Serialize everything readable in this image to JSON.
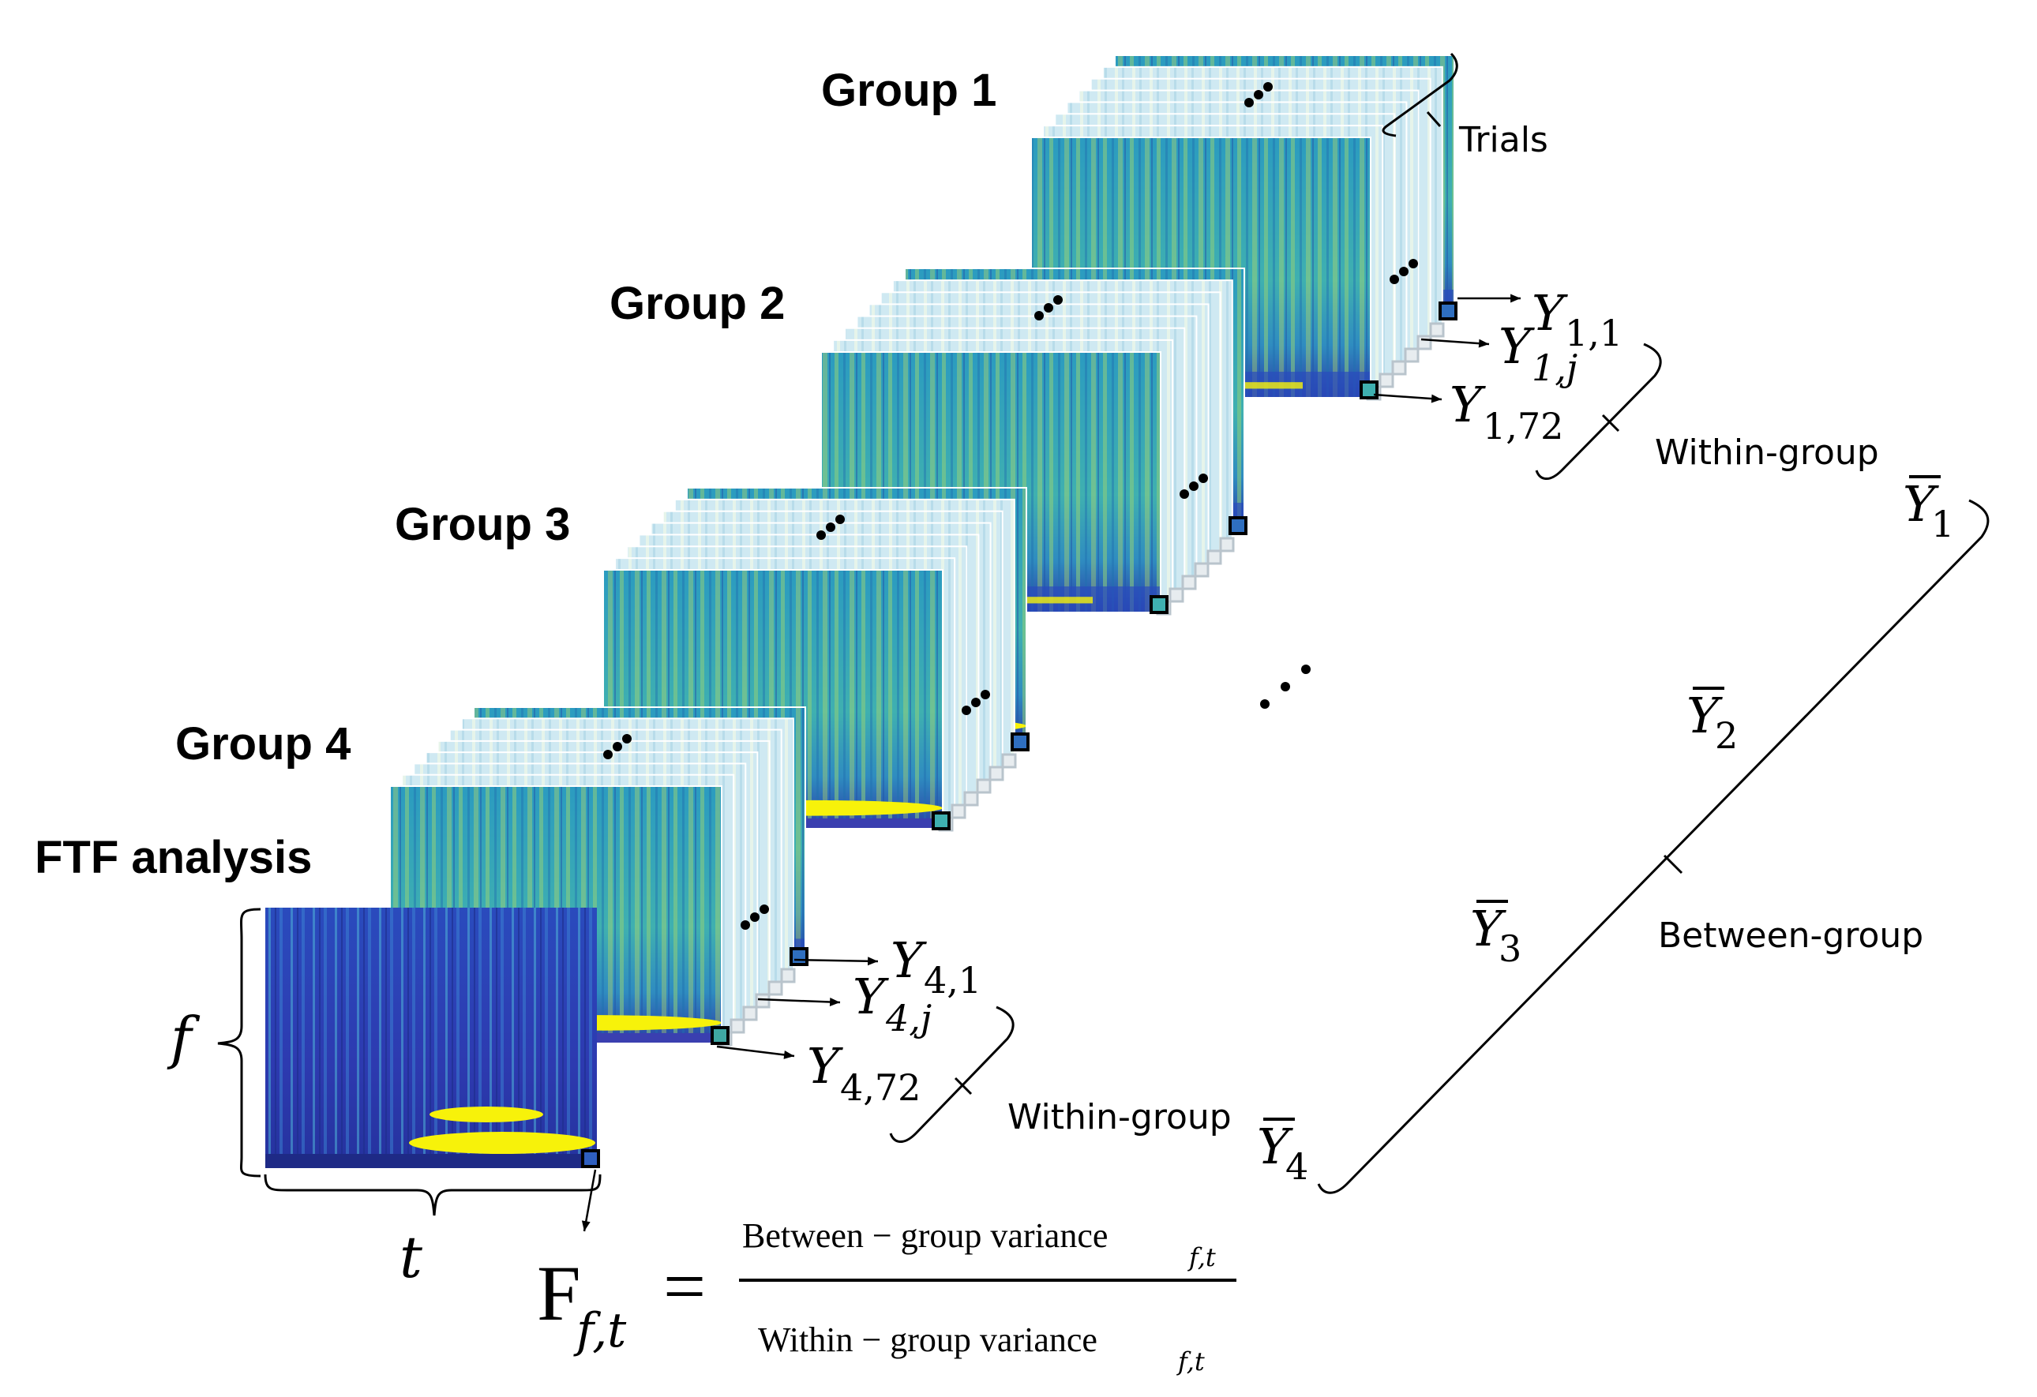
{
  "groups": [
    {
      "label": "Group 1"
    },
    {
      "label": "Group 2"
    },
    {
      "label": "Group 3"
    },
    {
      "label": "Group 4"
    }
  ],
  "ftf_label": "FTF analysis",
  "trials_label": "Trials",
  "within_group_label": "Within-group",
  "between_group_label": "Between-group",
  "axes": {
    "freq": "f",
    "time": "t"
  },
  "samples": {
    "g1": {
      "base": "Y",
      "subs": [
        "1,1",
        "1,j",
        "1,72"
      ]
    },
    "g4": {
      "base": "Y",
      "subs": [
        "4,1",
        "4,j",
        "4,72"
      ]
    }
  },
  "means": {
    "base": "Y",
    "subs": [
      "1",
      "2",
      "3",
      "4"
    ]
  },
  "formula": {
    "lhs_base": "F",
    "lhs_sub": "f,t",
    "equals": "=",
    "numerator": "Between − group variance",
    "numerator_sub": "f,t",
    "denominator": "Within − group variance",
    "denominator_sub": "f,t"
  },
  "colors": {
    "spectrogram_bg": "#2fa3c4",
    "spectrogram_low": "#3a3fb0",
    "spectrogram_high": "#f7f20a",
    "spectrogram_mid": "#7fc47a",
    "pale_sheet": "#cfe9f2",
    "marker_step": "#b9c4cc"
  }
}
